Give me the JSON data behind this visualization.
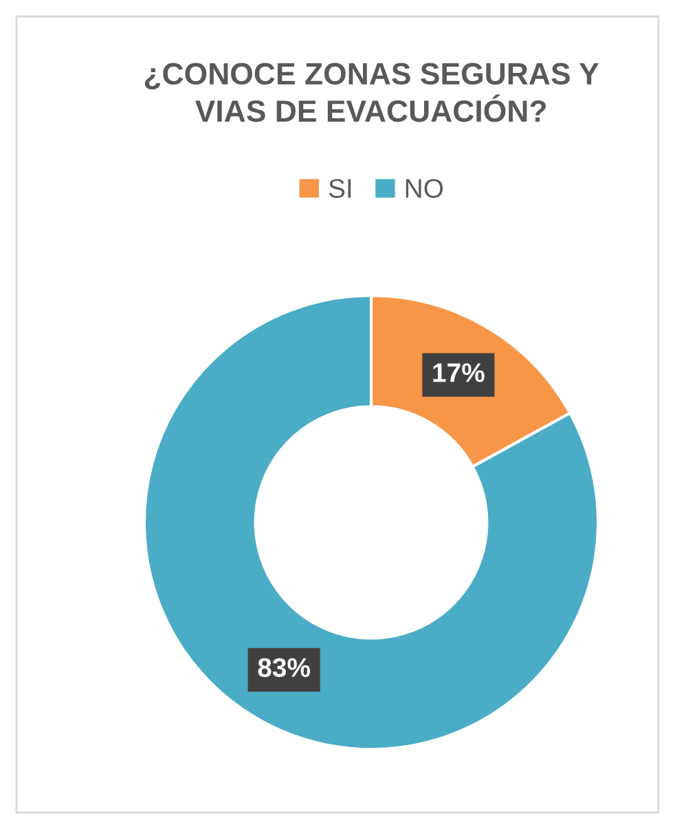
{
  "chart_data": {
    "type": "donut",
    "title": "¿CONOCE ZONAS SEGURAS Y\nVIAS DE EVACUACIÓN?",
    "categories": [
      "SI",
      "NO"
    ],
    "values": [
      17,
      83
    ],
    "colors": [
      "#f79646",
      "#4bacc6"
    ],
    "value_labels": [
      "17%",
      "83%"
    ],
    "legend": "top"
  }
}
